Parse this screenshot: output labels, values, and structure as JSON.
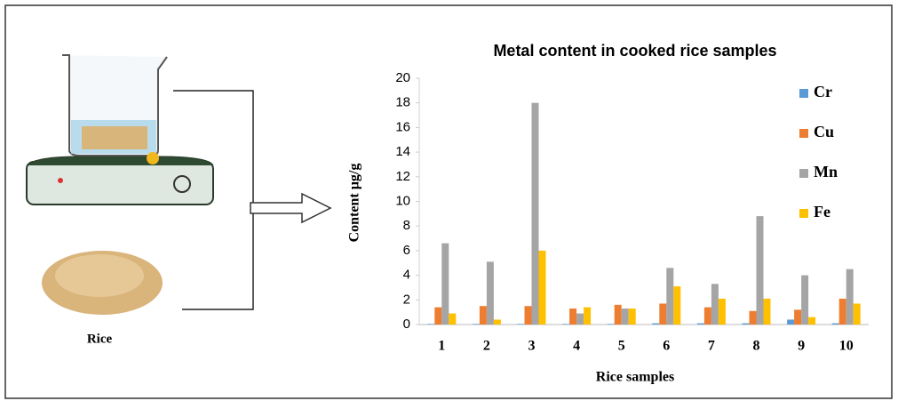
{
  "chart_data": {
    "type": "bar",
    "title": "Metal content in cooked rice samples",
    "x_label": "Rice samples",
    "y_label": "Content  µg/g",
    "categories": [
      "1",
      "2",
      "3",
      "4",
      "5",
      "6",
      "7",
      "8",
      "9",
      "10"
    ],
    "series": [
      {
        "name": "Cr",
        "color": "#5b9bd5",
        "values": [
          0.05,
          0.05,
          0.05,
          0.05,
          0.05,
          0.1,
          0.1,
          0.1,
          0.4,
          0.1
        ]
      },
      {
        "name": "Cu",
        "color": "#ed7d31",
        "values": [
          1.4,
          1.5,
          1.5,
          1.3,
          1.6,
          1.7,
          1.4,
          1.1,
          1.2,
          2.1
        ]
      },
      {
        "name": "Mn",
        "color": "#a5a5a5",
        "values": [
          6.6,
          5.1,
          18.0,
          0.9,
          1.3,
          4.6,
          3.3,
          8.8,
          4.0,
          4.5
        ]
      },
      {
        "name": "Fe",
        "color": "#ffc000",
        "values": [
          0.9,
          0.4,
          6.0,
          1.4,
          1.3,
          3.1,
          2.1,
          2.1,
          0.6,
          1.7
        ]
      }
    ],
    "ylim": [
      0,
      20
    ],
    "yticks": [
      0,
      2,
      4,
      6,
      8,
      10,
      12,
      14,
      16,
      18,
      20
    ],
    "grid": false,
    "legend": "upper right",
    "annotations": [
      "Rice"
    ]
  }
}
